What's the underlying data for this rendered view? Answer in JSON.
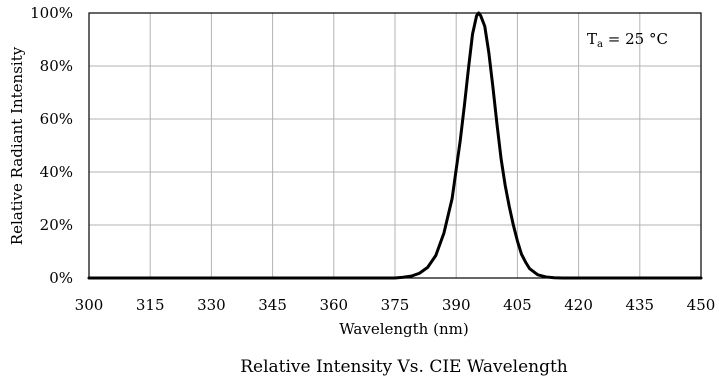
{
  "chart_data": {
    "type": "line",
    "title": "Relative Intensity Vs. CIE Wavelength",
    "xlabel": "Wavelength (nm)",
    "ylabel": "Relative Radiant Intensity",
    "xlim": [
      300,
      450
    ],
    "ylim": [
      0,
      100
    ],
    "x_ticks": [
      300,
      315,
      330,
      345,
      360,
      375,
      390,
      405,
      420,
      435,
      450
    ],
    "y_ticks": [
      0,
      20,
      40,
      60,
      80,
      100
    ],
    "x_tick_labels": [
      "300",
      "315",
      "330",
      "345",
      "360",
      "375",
      "390",
      "405",
      "420",
      "435",
      "450"
    ],
    "y_tick_labels": [
      "0%",
      "20%",
      "40%",
      "60%",
      "80%",
      "100%"
    ],
    "grid": true,
    "annotation": {
      "main": "T",
      "subscript": "a",
      "rest": " = 25 °C",
      "position": "top-right"
    },
    "series": [
      {
        "color": "#000000",
        "points": [
          [
            300,
            0
          ],
          [
            370,
            0
          ],
          [
            375,
            0
          ],
          [
            377,
            0.3
          ],
          [
            379,
            0.7
          ],
          [
            381,
            1.8
          ],
          [
            383,
            4
          ],
          [
            385,
            8.5
          ],
          [
            387,
            17
          ],
          [
            389,
            30
          ],
          [
            391,
            52
          ],
          [
            392,
            65
          ],
          [
            393,
            79
          ],
          [
            394,
            92
          ],
          [
            395,
            99
          ],
          [
            395.5,
            100
          ],
          [
            396,
            99
          ],
          [
            397,
            95
          ],
          [
            398,
            85
          ],
          [
            399,
            72
          ],
          [
            400,
            58
          ],
          [
            401,
            45
          ],
          [
            402,
            35
          ],
          [
            403,
            27
          ],
          [
            404,
            20
          ],
          [
            405,
            14
          ],
          [
            406,
            9
          ],
          [
            407,
            6
          ],
          [
            408,
            3.5
          ],
          [
            410,
            1.2
          ],
          [
            412,
            0.4
          ],
          [
            414,
            0.1
          ],
          [
            416,
            0
          ],
          [
            450,
            0
          ]
        ]
      }
    ]
  }
}
